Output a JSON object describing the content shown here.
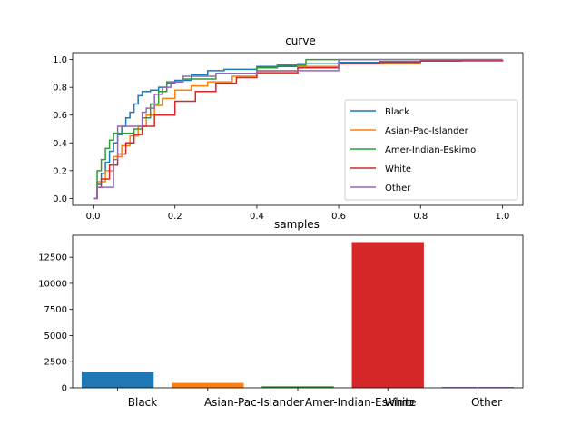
{
  "chart_data": [
    {
      "type": "line",
      "title": "curve",
      "xlabel": "",
      "ylabel": "",
      "xlim": [
        -0.05,
        1.05
      ],
      "ylim": [
        -0.05,
        1.05
      ],
      "xticks": [
        "0.0",
        "0.2",
        "0.4",
        "0.6",
        "0.8",
        "1.0"
      ],
      "yticks": [
        "0.0",
        "0.2",
        "0.4",
        "0.6",
        "0.8",
        "1.0"
      ],
      "legend_position": "lower-right",
      "series": [
        {
          "name": "Black",
          "color": "#1f77b4",
          "x": [
            0.0,
            0.01,
            0.02,
            0.03,
            0.04,
            0.05,
            0.06,
            0.07,
            0.08,
            0.09,
            0.1,
            0.11,
            0.12,
            0.14,
            0.16,
            0.18,
            0.2,
            0.24,
            0.28,
            0.32,
            0.4,
            0.5,
            0.6,
            0.8,
            1.0
          ],
          "y": [
            0.0,
            0.1,
            0.18,
            0.26,
            0.34,
            0.4,
            0.46,
            0.52,
            0.58,
            0.62,
            0.68,
            0.74,
            0.77,
            0.78,
            0.8,
            0.83,
            0.85,
            0.89,
            0.92,
            0.93,
            0.95,
            0.97,
            0.98,
            0.99,
            1.0
          ]
        },
        {
          "name": "Asian-Pac-Islander",
          "color": "#ff7f0e",
          "x": [
            0.0,
            0.01,
            0.03,
            0.05,
            0.07,
            0.09,
            0.11,
            0.13,
            0.15,
            0.17,
            0.2,
            0.24,
            0.28,
            0.34,
            0.4,
            0.5,
            0.6,
            0.8,
            1.0
          ],
          "y": [
            0.0,
            0.12,
            0.2,
            0.3,
            0.38,
            0.45,
            0.52,
            0.6,
            0.67,
            0.72,
            0.78,
            0.81,
            0.84,
            0.88,
            0.91,
            0.95,
            0.97,
            0.99,
            1.0
          ]
        },
        {
          "name": "Amer-Indian-Eskimo",
          "color": "#2ca02c",
          "x": [
            0.0,
            0.01,
            0.02,
            0.03,
            0.04,
            0.05,
            0.07,
            0.1,
            0.12,
            0.14,
            0.16,
            0.18,
            0.22,
            0.3,
            0.4,
            0.45,
            0.52,
            0.6,
            1.0
          ],
          "y": [
            0.0,
            0.2,
            0.28,
            0.36,
            0.42,
            0.47,
            0.47,
            0.5,
            0.58,
            0.68,
            0.77,
            0.84,
            0.86,
            0.9,
            0.94,
            0.96,
            1.0,
            1.0,
            1.0
          ]
        },
        {
          "name": "White",
          "color": "#d62728",
          "x": [
            0.0,
            0.01,
            0.02,
            0.04,
            0.06,
            0.08,
            0.1,
            0.12,
            0.15,
            0.2,
            0.25,
            0.3,
            0.35,
            0.4,
            0.5,
            0.6,
            0.7,
            0.8,
            0.9,
            1.0
          ],
          "y": [
            0.0,
            0.08,
            0.14,
            0.24,
            0.32,
            0.4,
            0.46,
            0.52,
            0.6,
            0.7,
            0.77,
            0.83,
            0.87,
            0.9,
            0.94,
            0.97,
            0.985,
            0.99,
            0.995,
            1.0
          ]
        },
        {
          "name": "Other",
          "color": "#9467bd",
          "x": [
            0.0,
            0.01,
            0.02,
            0.04,
            0.05,
            0.06,
            0.07,
            0.09,
            0.12,
            0.13,
            0.15,
            0.17,
            0.19,
            0.22,
            0.3,
            0.4,
            0.6,
            1.0
          ],
          "y": [
            0.0,
            0.08,
            0.08,
            0.08,
            0.28,
            0.52,
            0.52,
            0.52,
            0.62,
            0.65,
            0.75,
            0.8,
            0.84,
            0.88,
            0.9,
            0.92,
            1.0,
            1.0
          ]
        }
      ]
    },
    {
      "type": "bar",
      "title": "samples",
      "categories": [
        "Black",
        "Asian-Pac-Islander",
        "Amer-Indian-Eskimo",
        "White",
        "Other"
      ],
      "values": [
        1560,
        470,
        150,
        13950,
        80
      ],
      "colors": [
        "#1f77b4",
        "#ff7f0e",
        "#2ca02c",
        "#d62728",
        "#9467bd"
      ],
      "ylim": [
        0,
        14600
      ],
      "yticks": [
        "0",
        "2500",
        "5000",
        "7500",
        "10000",
        "12500"
      ],
      "xlabel": "",
      "ylabel": ""
    }
  ]
}
